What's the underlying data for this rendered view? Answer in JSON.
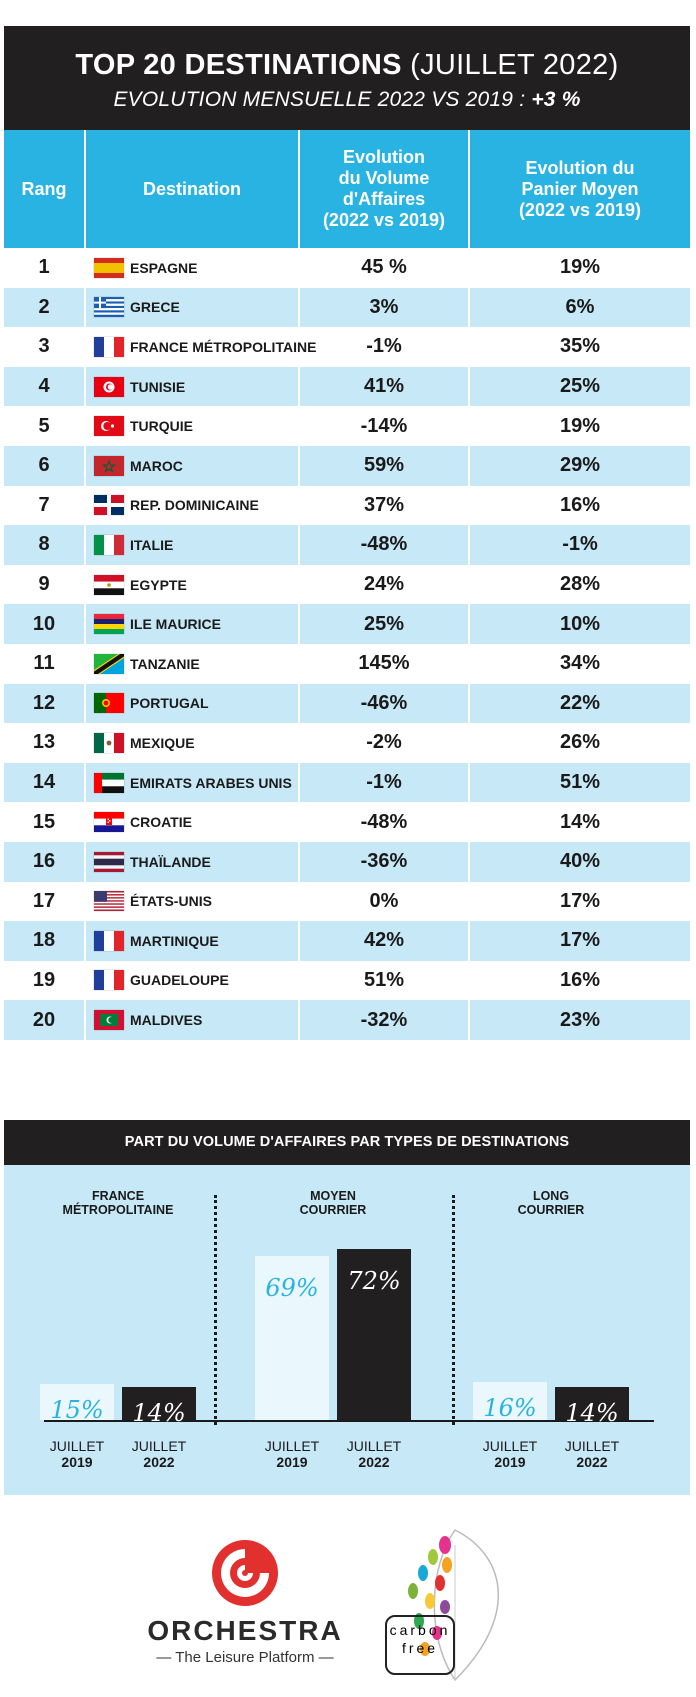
{
  "header": {
    "title_bold": "TOP 20 DESTINATIONS",
    "title_normal": "(JUILLET 2022)",
    "subtitle_text": "EVOLUTION MENSUELLE 2022 VS 2019 :",
    "subtitle_value": "+3 %"
  },
  "table": {
    "headers": {
      "rank": "Rang",
      "destination": "Destination",
      "volume_l1": "Evolution",
      "volume_l2": "du Volume",
      "volume_l3": "d'Affaires",
      "volume_l4": "(2022 vs 2019)",
      "panier_l1": "Evolution du",
      "panier_l2": "Panier Moyen",
      "panier_l3": "(2022 vs 2019)"
    },
    "rows": [
      {
        "rank": "1",
        "destination": "ESPAGNE",
        "volume": "45 %",
        "panier": "19%",
        "flag": "spain"
      },
      {
        "rank": "2",
        "destination": "GRECE",
        "volume": "3%",
        "panier": "6%",
        "flag": "greece"
      },
      {
        "rank": "3",
        "destination": "FRANCE MÉTROPOLITAINE",
        "volume": "-1%",
        "panier": "35%",
        "flag": "france"
      },
      {
        "rank": "4",
        "destination": "TUNISIE",
        "volume": "41%",
        "panier": "25%",
        "flag": "tunisia"
      },
      {
        "rank": "5",
        "destination": "TURQUIE",
        "volume": "-14%",
        "panier": "19%",
        "flag": "turkey"
      },
      {
        "rank": "6",
        "destination": "MAROC",
        "volume": "59%",
        "panier": "29%",
        "flag": "morocco"
      },
      {
        "rank": "7",
        "destination": "REP. DOMINICAINE",
        "volume": "37%",
        "panier": "16%",
        "flag": "dominican"
      },
      {
        "rank": "8",
        "destination": "ITALIE",
        "volume": "-48%",
        "panier": "-1%",
        "flag": "italy"
      },
      {
        "rank": "9",
        "destination": "EGYPTE",
        "volume": "24%",
        "panier": "28%",
        "flag": "egypt"
      },
      {
        "rank": "10",
        "destination": "ILE MAURICE",
        "volume": "25%",
        "panier": "10%",
        "flag": "mauritius"
      },
      {
        "rank": "11",
        "destination": "TANZANIE",
        "volume": "145%",
        "panier": "34%",
        "flag": "tanzania"
      },
      {
        "rank": "12",
        "destination": "PORTUGAL",
        "volume": "-46%",
        "panier": "22%",
        "flag": "portugal"
      },
      {
        "rank": "13",
        "destination": "MEXIQUE",
        "volume": "-2%",
        "panier": "26%",
        "flag": "mexico"
      },
      {
        "rank": "14",
        "destination": "EMIRATS ARABES UNIS",
        "volume": "-1%",
        "panier": "51%",
        "flag": "uae"
      },
      {
        "rank": "15",
        "destination": "CROATIE",
        "volume": "-48%",
        "panier": "14%",
        "flag": "croatia"
      },
      {
        "rank": "16",
        "destination": "THAÏLANDE",
        "volume": "-36%",
        "panier": "40%",
        "flag": "thailand"
      },
      {
        "rank": "17",
        "destination": "ÉTATS-UNIS",
        "volume": "0%",
        "panier": "17%",
        "flag": "usa"
      },
      {
        "rank": "18",
        "destination": "MARTINIQUE",
        "volume": "42%",
        "panier": "17%",
        "flag": "france"
      },
      {
        "rank": "19",
        "destination": "GUADELOUPE",
        "volume": "51%",
        "panier": "16%",
        "flag": "france"
      },
      {
        "rank": "20",
        "destination": "MALDIVES",
        "volume": "-32%",
        "panier": "23%",
        "flag": "maldives"
      }
    ]
  },
  "chart_data": {
    "type": "bar",
    "title": "PART DU VOLUME D'AFFAIRES PAR TYPES DE DESTINATIONS",
    "groups": [
      {
        "label_l1": "FRANCE",
        "label_l2": "MÉTROPOLITAINE",
        "values": [
          15,
          14
        ],
        "labels": [
          "15%",
          "14%"
        ]
      },
      {
        "label_l1": "MOYEN",
        "label_l2": "COURRIER",
        "values": [
          69,
          72
        ],
        "labels": [
          "69%",
          "72%"
        ]
      },
      {
        "label_l1": "LONG",
        "label_l2": "COURRIER",
        "values": [
          16,
          14
        ],
        "labels": [
          "16%",
          "14%"
        ]
      }
    ],
    "series": [
      {
        "month": "JUILLET",
        "year": "2019",
        "color": "#eaf7fd",
        "text_color": "#29b3e3"
      },
      {
        "month": "JUILLET",
        "year": "2022",
        "color": "#221f20",
        "text_color": "#ffffff"
      }
    ],
    "ylim": [
      0,
      100
    ]
  },
  "logos": {
    "orchestra_name": "ORCHESTRA",
    "orchestra_tagline": "— The Leisure Platform —",
    "carbon_l1": "carbon",
    "carbon_l2": "free"
  }
}
